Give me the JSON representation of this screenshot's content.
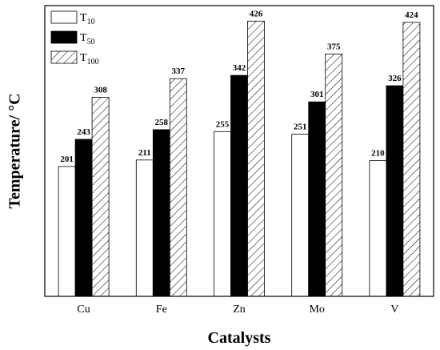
{
  "chart_data": {
    "type": "bar",
    "categories": [
      "Cu",
      "Fe",
      "Zn",
      "Mo",
      "V"
    ],
    "series": [
      {
        "name": "T10",
        "name_main": "T",
        "name_sub": "10",
        "values": [
          201,
          211,
          255,
          251,
          210
        ],
        "fill": "#ffffff",
        "pattern": "none"
      },
      {
        "name": "T50",
        "name_main": "T",
        "name_sub": "50",
        "values": [
          243,
          258,
          342,
          301,
          326
        ],
        "fill": "#000000",
        "pattern": "none"
      },
      {
        "name": "T100",
        "name_main": "T",
        "name_sub": "100",
        "values": [
          308,
          337,
          426,
          375,
          424
        ],
        "fill": "#ffffff",
        "pattern": "diagonal-hatch"
      }
    ],
    "xlabel": "Catalysts",
    "ylabel": "Temperature/ °C",
    "ylim": [
      0,
      450
    ],
    "y_ticks_visible": false,
    "grid": false,
    "legend_position": "top-left",
    "colors": {
      "ink": "#000000",
      "background": "#ffffff"
    }
  }
}
